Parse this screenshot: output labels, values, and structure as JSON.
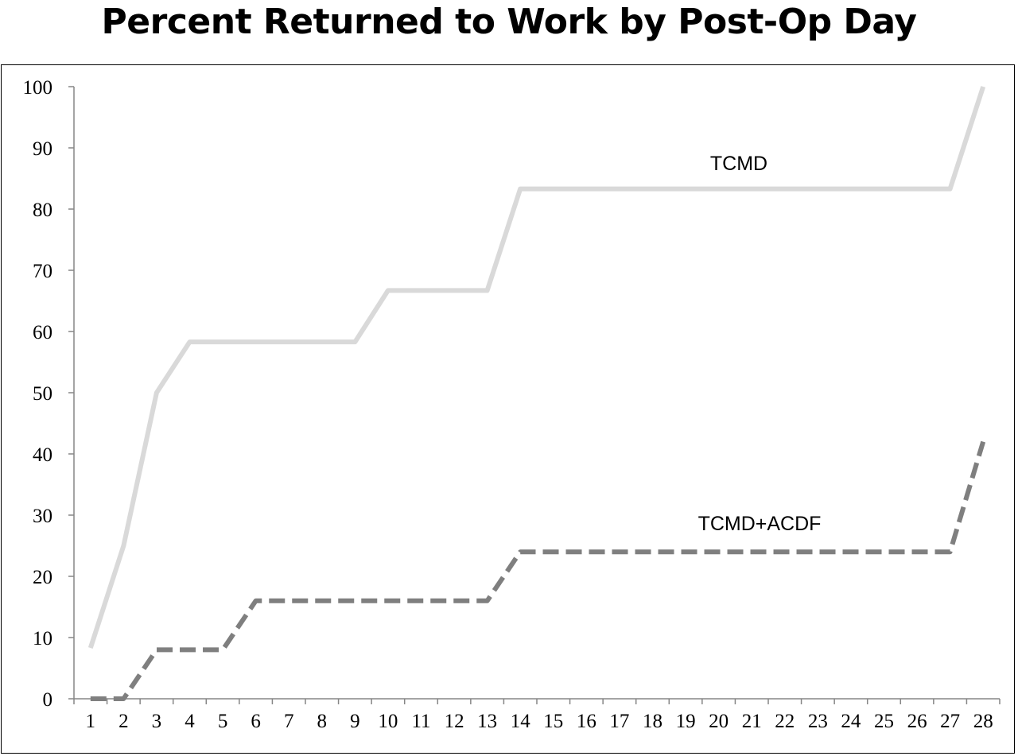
{
  "chart_data": {
    "type": "line",
    "title": "Percent Returned to Work by Post-Op Day",
    "xlabel": "",
    "ylabel": "",
    "x": [
      1,
      2,
      3,
      4,
      5,
      6,
      7,
      8,
      9,
      10,
      11,
      12,
      13,
      14,
      15,
      16,
      17,
      18,
      19,
      20,
      21,
      22,
      23,
      24,
      25,
      26,
      27,
      28
    ],
    "ylim": [
      0,
      100
    ],
    "yticks": [
      0,
      10,
      20,
      30,
      40,
      50,
      60,
      70,
      80,
      90,
      100
    ],
    "grid": false,
    "series": [
      {
        "name": "TCMD",
        "color": "#d9d9d9",
        "style": "solid",
        "values": [
          8.3,
          25,
          50,
          58.3,
          58.3,
          58.3,
          58.3,
          58.3,
          58.3,
          66.7,
          66.7,
          66.7,
          66.7,
          83.3,
          83.3,
          83.3,
          83.3,
          83.3,
          83.3,
          83.3,
          83.3,
          83.3,
          83.3,
          83.3,
          83.3,
          83.3,
          83.3,
          100
        ]
      },
      {
        "name": "TCMD+ACDF",
        "color": "#7f7f7f",
        "style": "dashed",
        "values": [
          0,
          0,
          8,
          8,
          8,
          16,
          16,
          16,
          16,
          16,
          16,
          16,
          16,
          24,
          24,
          24,
          24,
          24,
          24,
          24,
          24,
          24,
          24,
          24,
          24,
          24,
          24,
          42
        ]
      }
    ]
  }
}
